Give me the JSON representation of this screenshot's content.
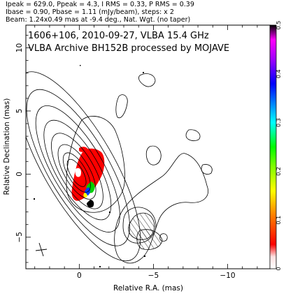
{
  "header": {
    "line1": "Ipeak = 629.0, Ppeak = 4.3, I RMS = 0.33, P RMS = 0.39",
    "line2": "Ibase = 0.90, Pbase = 1.11 (mJy/beam), steps: x 2",
    "line3": "Beam: 1.24x0.49 mas at -9.4 deg., Nat. Wgt. (no taper)"
  },
  "chart_data": {
    "type": "contour",
    "title": "1606+106, 2010-09-27, VLBA 15.4 GHz",
    "subtitle": "VLBA Archive BH152B processed by MOJAVE",
    "xlabel": "Relative R.A. (mas)",
    "ylabel": "Relative Declination (mas)",
    "xlim": [
      3.6,
      -12.9
    ],
    "ylim": [
      -7.5,
      11.8
    ],
    "xticks": [
      0,
      -5,
      -10
    ],
    "yticks": [
      10,
      5,
      0,
      -5
    ],
    "colorbar": {
      "range": [
        0,
        0.5
      ],
      "ticks": [
        "0",
        "0.1",
        "0.2",
        "0.3",
        "0.4",
        "0.5"
      ],
      "colors": [
        "#ffffff",
        "#ffd8d8",
        "#ff0000",
        "#ff8000",
        "#ffff00",
        "#80ff00",
        "#00ff00",
        "#00ffff",
        "#0080ff",
        "#0000ff",
        "#8000ff",
        "#ff00ff",
        "#000000"
      ]
    },
    "core_contours": [
      [
        0.9,
        0.45
      ],
      [
        1.3,
        0.65
      ],
      [
        1.8,
        0.9
      ],
      [
        2.5,
        1.2
      ],
      [
        3.3,
        1.5
      ],
      [
        4.2,
        1.8
      ],
      [
        5.2,
        2.15
      ],
      [
        6.3,
        2.5
      ]
    ],
    "core_position_angle_deg": -30,
    "components": [
      {
        "name": "core",
        "ra": 0.2,
        "dec": 0.0
      },
      {
        "name": "southwest-jet",
        "ra": -5.3,
        "dec": -4.3
      }
    ],
    "beam": {
      "major_mas": 1.24,
      "minor_mas": 0.49,
      "pa_deg": -9.4
    }
  }
}
